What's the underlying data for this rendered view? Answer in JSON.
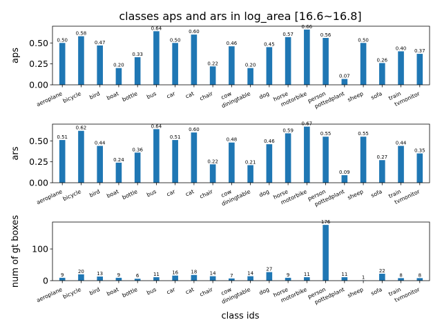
{
  "chart_data": {
    "type": "bar",
    "title": "classes aps and ars in log_area [16.6~16.8]",
    "xlabel": "class ids",
    "categories": [
      "aeroplane",
      "bicycle",
      "bird",
      "boat",
      "bottle",
      "bus",
      "car",
      "cat",
      "chair",
      "cow",
      "diningtable",
      "dog",
      "horse",
      "motorbike",
      "person",
      "pottedplant",
      "sheep",
      "sofa",
      "train",
      "tvmonitor"
    ],
    "colors": {
      "bar": "#1f77b4"
    },
    "grid": false,
    "subplots": [
      {
        "ylabel": "aps",
        "ylim": [
          0,
          0.7
        ],
        "yticks": [
          "0.00",
          "0.25",
          "0.50"
        ],
        "ytick_values": [
          0,
          0.25,
          0.5
        ],
        "values": [
          0.5,
          0.58,
          0.47,
          0.2,
          0.33,
          0.64,
          0.5,
          0.6,
          0.22,
          0.46,
          0.2,
          0.45,
          0.57,
          0.66,
          0.56,
          0.07,
          0.5,
          0.26,
          0.4,
          0.37
        ],
        "labels": [
          "0.50",
          "0.58",
          "0.47",
          "0.20",
          "0.33",
          "0.64",
          "0.50",
          "0.60",
          "0.22",
          "0.46",
          "0.20",
          "0.45",
          "0.57",
          "0.66",
          "0.56",
          "0.07",
          "0.50",
          "0.26",
          "0.40",
          "0.37"
        ]
      },
      {
        "ylabel": "ars",
        "ylim": [
          0,
          0.7
        ],
        "yticks": [
          "0.00",
          "0.25",
          "0.50"
        ],
        "ytick_values": [
          0,
          0.25,
          0.5
        ],
        "values": [
          0.51,
          0.62,
          0.44,
          0.24,
          0.36,
          0.64,
          0.51,
          0.6,
          0.22,
          0.48,
          0.21,
          0.46,
          0.59,
          0.67,
          0.55,
          0.09,
          0.55,
          0.27,
          0.44,
          0.35
        ],
        "labels": [
          "0.51",
          "0.62",
          "0.44",
          "0.24",
          "0.36",
          "0.64",
          "0.51",
          "0.60",
          "0.22",
          "0.48",
          "0.21",
          "0.46",
          "0.59",
          "0.67",
          "0.55",
          "0.09",
          "0.55",
          "0.27",
          "0.44",
          "0.35"
        ]
      },
      {
        "ylabel": "num of gt boxes",
        "ylim": [
          0,
          185
        ],
        "yticks": [
          "0",
          "100"
        ],
        "ytick_values": [
          0,
          100
        ],
        "values": [
          9,
          20,
          13,
          9,
          6,
          11,
          16,
          18,
          14,
          7,
          14,
          27,
          9,
          11,
          176,
          11,
          1,
          22,
          8,
          8
        ],
        "labels": [
          "9",
          "20",
          "13",
          "9",
          "6",
          "11",
          "16",
          "18",
          "14",
          "7",
          "14",
          "27",
          "9",
          "11",
          "176",
          "11",
          "1",
          "22",
          "8",
          "8"
        ]
      }
    ]
  }
}
